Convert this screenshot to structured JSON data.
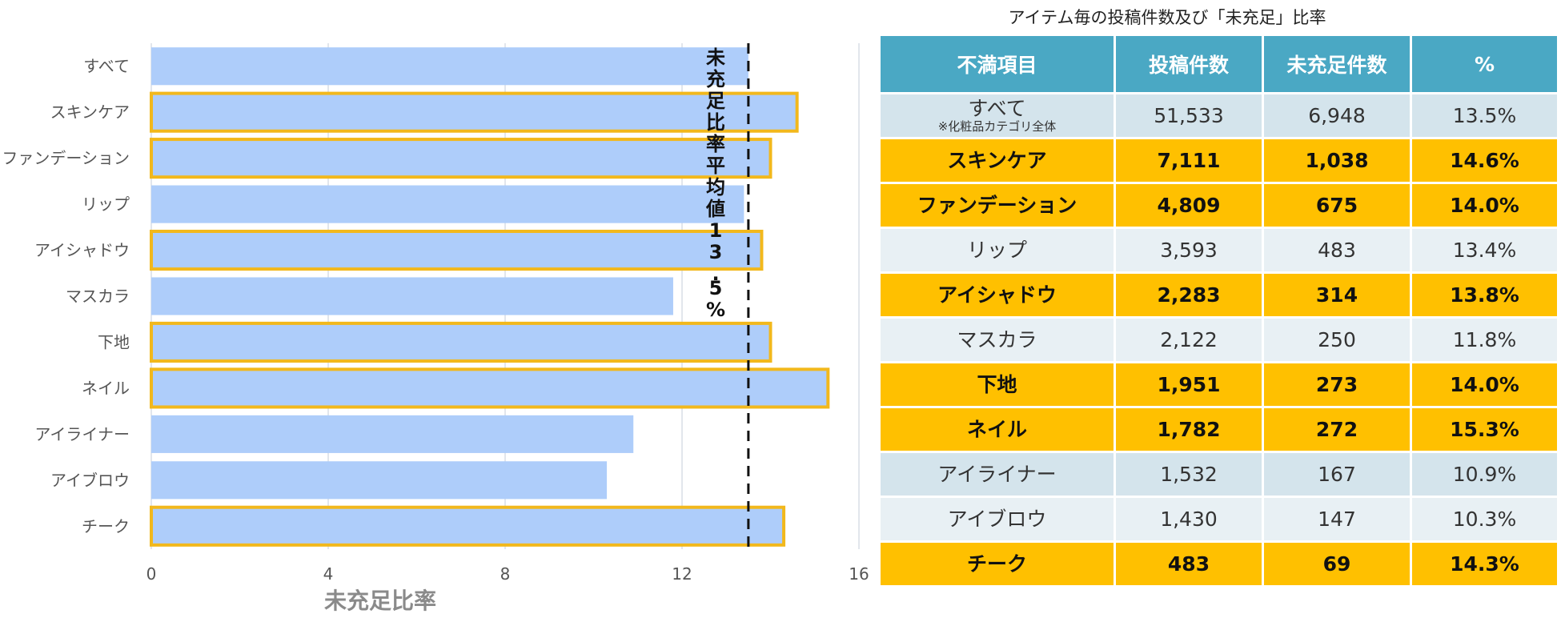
{
  "chart_data": {
    "type": "bar",
    "orientation": "horizontal",
    "categories": [
      "すべて",
      "スキンケア",
      "ファンデーション",
      "リップ",
      "アイシャドウ",
      "マスカラ",
      "下地",
      "ネイル",
      "アイライナー",
      "アイブロウ",
      "チーク"
    ],
    "values": [
      13.5,
      14.6,
      14.0,
      13.4,
      13.8,
      11.8,
      14.0,
      15.3,
      10.9,
      10.3,
      14.3
    ],
    "highlighted": [
      false,
      true,
      true,
      false,
      true,
      false,
      true,
      true,
      false,
      false,
      true
    ],
    "xlim": [
      0,
      16
    ],
    "xticks": [
      0,
      4,
      8,
      12,
      16
    ],
    "xlabel": "未充足比率",
    "ylabel": "",
    "grid": true,
    "average_line": {
      "value": 13.5,
      "label": "未充足比率平均値13.5%"
    },
    "colors": {
      "bar": "#aecdfa",
      "highlight_border": "#f2b81c",
      "avg_line": "#111111",
      "grid": "#d8dee6"
    }
  },
  "table": {
    "title": "アイテム毎の投稿件数及び「未充足」比率",
    "headers": [
      "不満項目",
      "投稿件数",
      "未充足件数",
      "%"
    ],
    "rows": [
      {
        "name": "すべて",
        "note": "※化粧品カテゴリ全体",
        "posts": "51,533",
        "unmet": "6,948",
        "pct": "13.5%",
        "highlight": false
      },
      {
        "name": "スキンケア",
        "posts": "7,111",
        "unmet": "1,038",
        "pct": "14.6%",
        "highlight": true
      },
      {
        "name": "ファンデーション",
        "posts": "4,809",
        "unmet": "675",
        "pct": "14.0%",
        "highlight": true
      },
      {
        "name": "リップ",
        "posts": "3,593",
        "unmet": "483",
        "pct": "13.4%",
        "highlight": false
      },
      {
        "name": "アイシャドウ",
        "posts": "2,283",
        "unmet": "314",
        "pct": "13.8%",
        "highlight": true
      },
      {
        "name": "マスカラ",
        "posts": "2,122",
        "unmet": "250",
        "pct": "11.8%",
        "highlight": false
      },
      {
        "name": "下地",
        "posts": "1,951",
        "unmet": "273",
        "pct": "14.0%",
        "highlight": true
      },
      {
        "name": "ネイル",
        "posts": "1,782",
        "unmet": "272",
        "pct": "15.3%",
        "highlight": true
      },
      {
        "name": "アイライナー",
        "posts": "1,532",
        "unmet": "167",
        "pct": "10.9%",
        "highlight": false
      },
      {
        "name": "アイブロウ",
        "posts": "1,430",
        "unmet": "147",
        "pct": "10.3%",
        "highlight": false
      },
      {
        "name": "チーク",
        "posts": "483",
        "unmet": "69",
        "pct": "14.3%",
        "highlight": true
      }
    ],
    "colors": {
      "header": "#4aa8c4",
      "row_a": "#d4e4ec",
      "row_b": "#e8f0f4",
      "highlight": "#ffc000"
    }
  }
}
